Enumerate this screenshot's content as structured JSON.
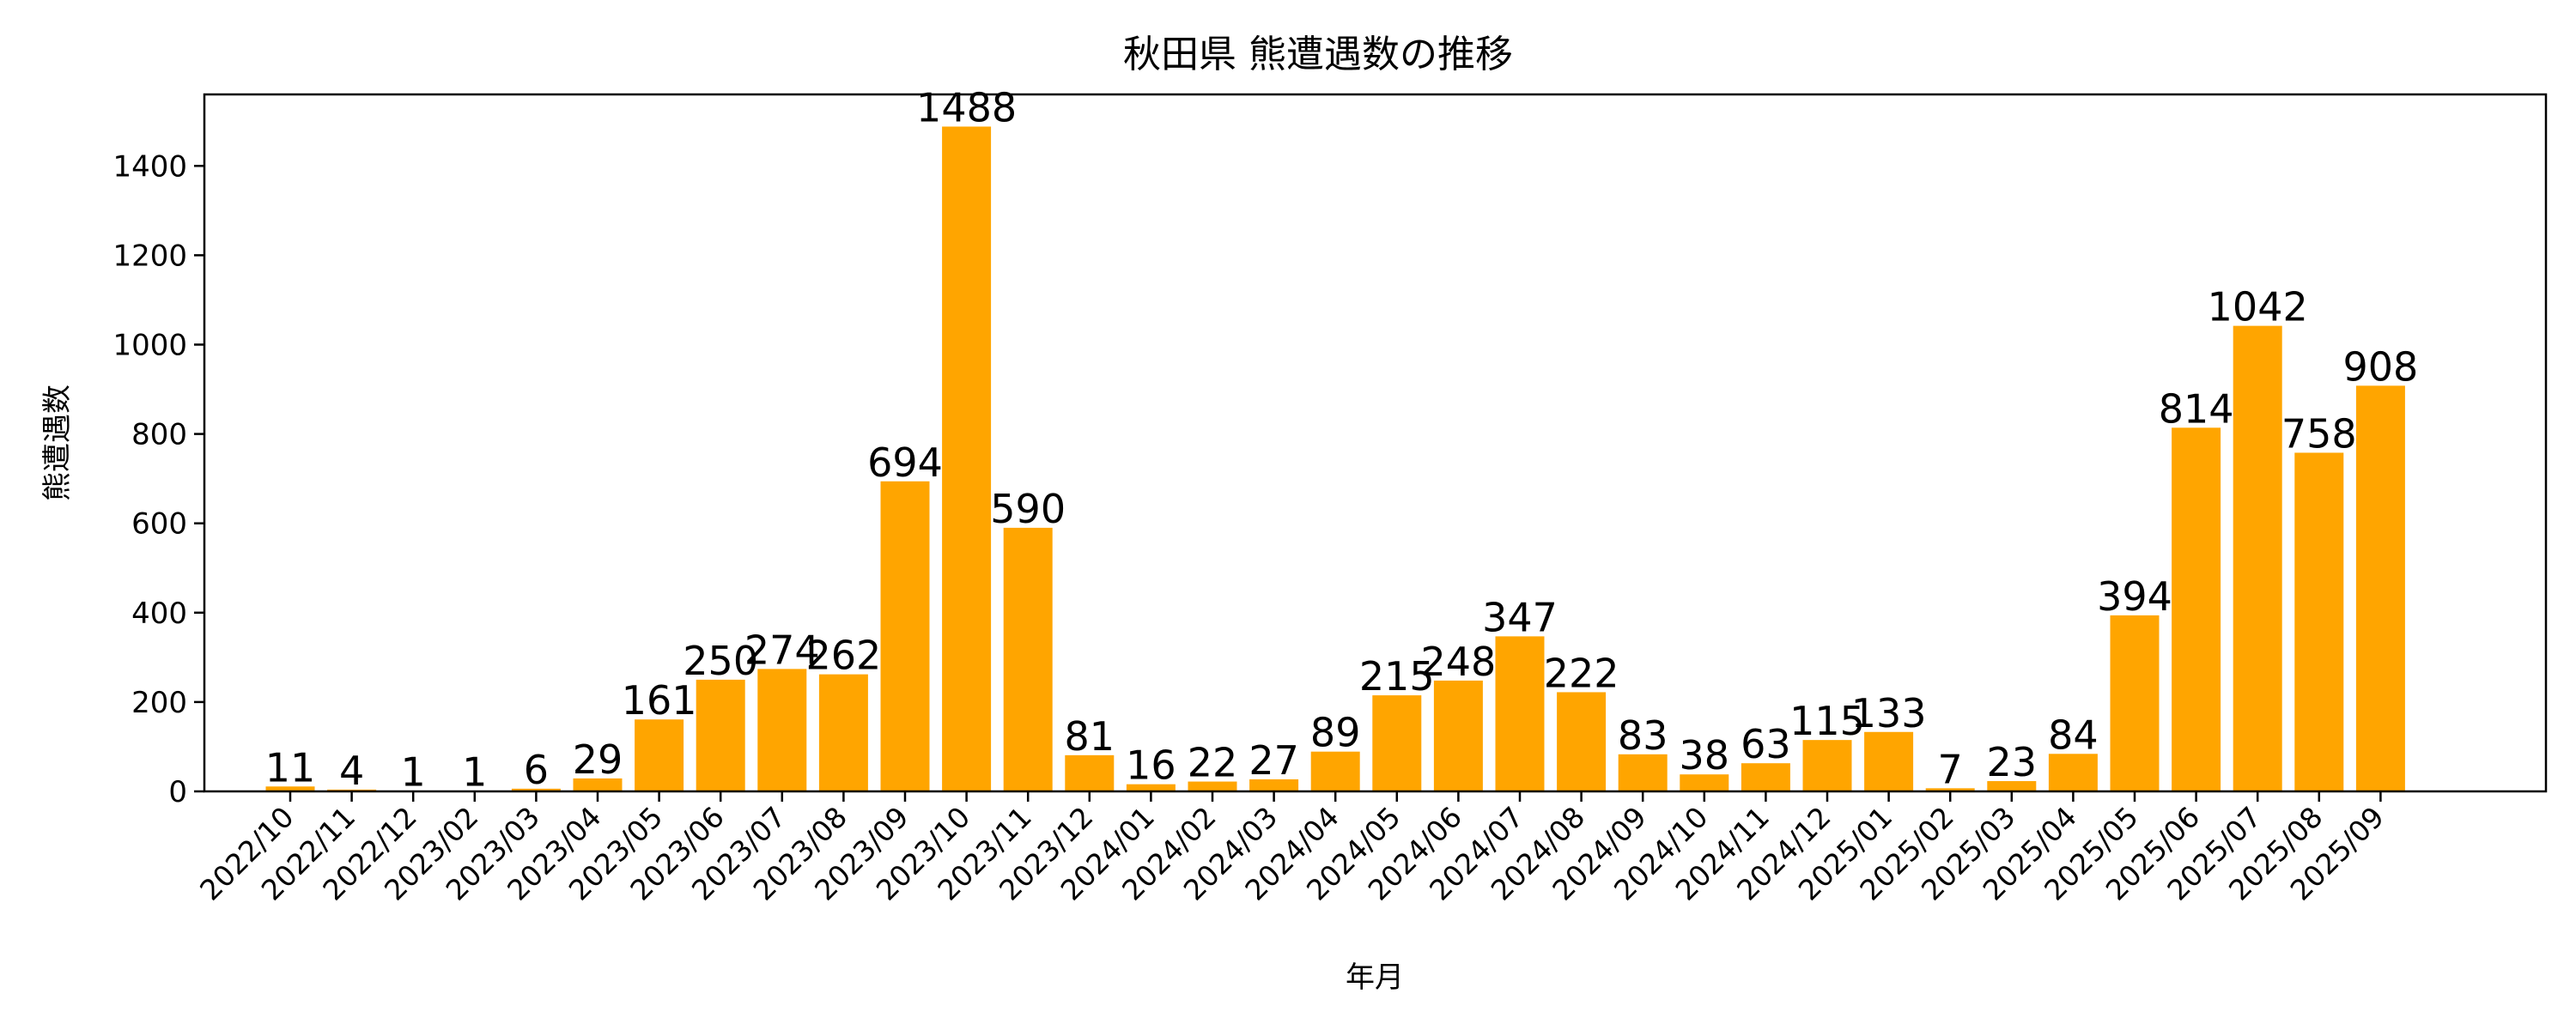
{
  "chart_data": {
    "type": "bar",
    "title": "秋田県 熊遭遇数の推移",
    "xlabel": "年月",
    "ylabel": "熊遭遇数",
    "ylim": [
      0,
      1560
    ],
    "yticks": [
      0,
      200,
      400,
      600,
      800,
      1000,
      1200,
      1400
    ],
    "grid": false,
    "bar_color": "#FFA500",
    "categories": [
      "2022/10",
      "2022/11",
      "2022/12",
      "2023/02",
      "2023/03",
      "2023/04",
      "2023/05",
      "2023/06",
      "2023/07",
      "2023/08",
      "2023/09",
      "2023/10",
      "2023/11",
      "2023/12",
      "2024/01",
      "2024/02",
      "2024/03",
      "2024/04",
      "2024/05",
      "2024/06",
      "2024/07",
      "2024/08",
      "2024/09",
      "2024/10",
      "2024/11",
      "2024/12",
      "2025/01",
      "2025/02",
      "2025/03",
      "2025/04",
      "2025/05",
      "2025/06",
      "2025/07",
      "2025/08",
      "2025/09"
    ],
    "values": [
      11,
      4,
      1,
      1,
      6,
      29,
      161,
      250,
      274,
      262,
      694,
      1488,
      590,
      81,
      16,
      22,
      27,
      89,
      215,
      248,
      347,
      222,
      83,
      38,
      63,
      115,
      133,
      7,
      23,
      84,
      394,
      814,
      1042,
      758,
      908
    ]
  }
}
